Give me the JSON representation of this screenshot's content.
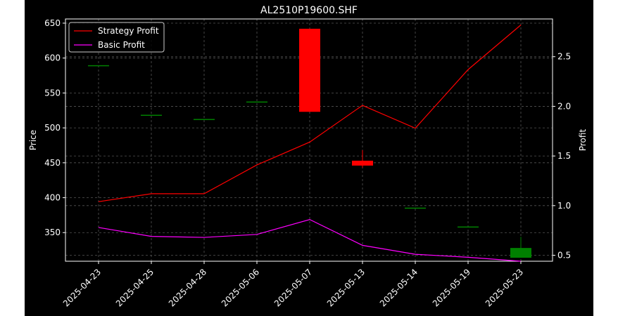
{
  "chart_data": {
    "type": "candlestick+line",
    "title": "AL2510P19600.SHF",
    "xlabel": "",
    "ylabel_left": "Price",
    "ylabel_right": "Profit",
    "categories": [
      "2025-04-23",
      "2025-04-25",
      "2025-04-28",
      "2025-05-06",
      "2025-05-07",
      "2025-05-13",
      "2025-05-14",
      "2025-05-19",
      "2025-05-23"
    ],
    "y_left_ticks": [
      350,
      400,
      450,
      500,
      550,
      600,
      650
    ],
    "y_right_ticks": [
      0.5,
      1.0,
      1.5,
      2.0,
      2.5
    ],
    "ylim_left": [
      309,
      656
    ],
    "ylim_right": [
      0.44,
      2.88
    ],
    "grid": true,
    "legend_position": "top-left",
    "candles": [
      {
        "open": 589,
        "high": 589,
        "low": 589,
        "close": 589
      },
      {
        "open": 518,
        "high": 518,
        "low": 518,
        "close": 518
      },
      {
        "open": 512,
        "high": 512,
        "low": 512,
        "close": 512
      },
      {
        "open": 537,
        "high": 537,
        "low": 537,
        "close": 537
      },
      {
        "open": 642,
        "high": 642,
        "low": 523,
        "close": 523
      },
      {
        "open": 453,
        "high": 468,
        "low": 443,
        "close": 446
      },
      {
        "open": 385,
        "high": 385,
        "low": 385,
        "close": 385
      },
      {
        "open": 358,
        "high": 358,
        "low": 358,
        "close": 358
      },
      {
        "open": 314,
        "high": 344,
        "low": 314,
        "close": 328
      }
    ],
    "series": [
      {
        "name": "Strategy Profit",
        "color": "#ff0000",
        "values": [
          1.04,
          1.12,
          1.12,
          1.41,
          1.64,
          2.01,
          1.78,
          2.37,
          2.82
        ]
      },
      {
        "name": "Basic Profit",
        "color": "#ff00ff",
        "values": [
          0.78,
          0.69,
          0.68,
          0.71,
          0.86,
          0.6,
          0.51,
          0.48,
          0.44
        ]
      }
    ],
    "colors": {
      "up": "#008000",
      "down": "#ff0000",
      "background": "#000000",
      "text": "#ffffff"
    }
  }
}
